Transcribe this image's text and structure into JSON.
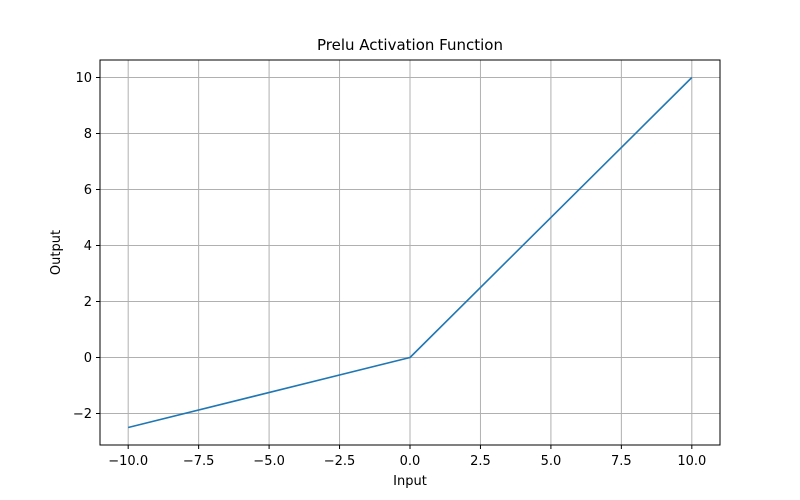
{
  "chart_data": {
    "type": "line",
    "title": "Prelu Activation Function",
    "xlabel": "Input",
    "ylabel": "Output",
    "xlim": [
      -11.0,
      11.0
    ],
    "ylim": [
      -3.125,
      10.625
    ],
    "x_ticks": [
      -10.0,
      -7.5,
      -5.0,
      -2.5,
      0.0,
      2.5,
      5.0,
      7.5,
      10.0
    ],
    "x_tick_labels": [
      "−10.0",
      "−7.5",
      "−5.0",
      "−2.5",
      "0.0",
      "2.5",
      "5.0",
      "7.5",
      "10.0"
    ],
    "y_ticks": [
      -2,
      0,
      2,
      4,
      6,
      8,
      10
    ],
    "y_tick_labels": [
      "−2",
      "0",
      "2",
      "4",
      "6",
      "8",
      "10"
    ],
    "grid": true,
    "series": [
      {
        "color": "#1f77b4",
        "x": [
          -10.0,
          0.0,
          10.0
        ],
        "y": [
          -2.5,
          0.0,
          10.0
        ]
      }
    ],
    "colors": {
      "grid": "#b0b0b0",
      "axes": "#000000"
    }
  }
}
